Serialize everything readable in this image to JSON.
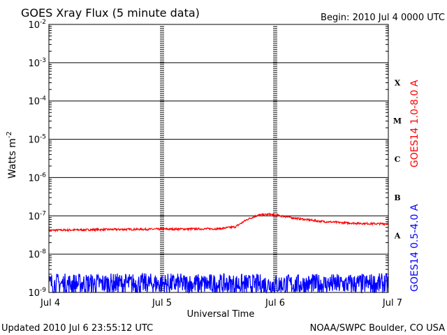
{
  "chart_data": {
    "type": "line",
    "title": "GOES Xray Flux (5 minute data)",
    "begin_label": "Begin:  2010 Jul 4 0000 UTC",
    "ylabel": "Watts m",
    "ylabel_sup": "-2",
    "xlabel": "Universal Time",
    "y_scale": "log",
    "ylim": [
      1e-09,
      0.01
    ],
    "y_ticks": [
      {
        "base": "10",
        "exp": "-2"
      },
      {
        "base": "10",
        "exp": "-3"
      },
      {
        "base": "10",
        "exp": "-4"
      },
      {
        "base": "10",
        "exp": "-5"
      },
      {
        "base": "10",
        "exp": "-6"
      },
      {
        "base": "10",
        "exp": "-7"
      },
      {
        "base": "10",
        "exp": "-8"
      },
      {
        "base": "10",
        "exp": "-9"
      }
    ],
    "x_tick_labels": [
      "Jul 4",
      "Jul 5",
      "Jul 6",
      "Jul 7"
    ],
    "flare_classes": [
      "X",
      "M",
      "C",
      "B",
      "A"
    ],
    "grid": true,
    "series": [
      {
        "name": "GOES14 1.0-8.0 A",
        "color": "#ff0000",
        "x_days": [
          0,
          0.5,
          1.0,
          1.5,
          1.65,
          1.75,
          1.85,
          1.95,
          2.05,
          2.2,
          2.4,
          2.6,
          2.8,
          2.95,
          3.0
        ],
        "values": [
          4.2e-08,
          4.4e-08,
          4.5e-08,
          4.6e-08,
          5.2e-08,
          8e-08,
          1.05e-07,
          1.1e-07,
          1e-07,
          8.5e-08,
          7.2e-08,
          6.6e-08,
          6.3e-08,
          6.2e-08,
          6.3e-08
        ]
      },
      {
        "name": "GOES14 0.5-4.0 A",
        "color": "#0000ff",
        "x_days": [
          0,
          1.0,
          2.0,
          3.0
        ],
        "values": [
          1.8e-09,
          1.8e-09,
          1.7e-09,
          1.8e-09
        ]
      }
    ],
    "footer_left": "Updated 2010 Jul  6 23:55:12 UTC",
    "footer_right": "NOAA/SWPC Boulder, CO USA"
  }
}
